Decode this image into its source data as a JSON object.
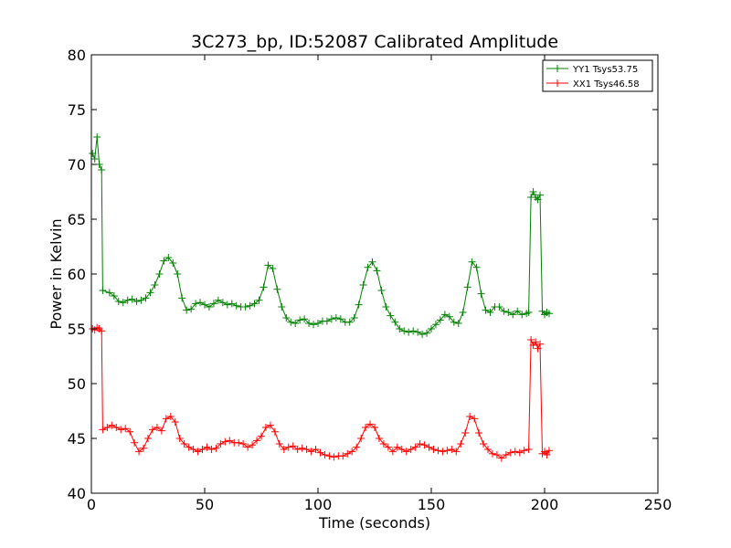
{
  "chart_data": {
    "type": "line",
    "title": "3C273_bp, ID:52087 Calibrated Amplitude",
    "xlabel": "Time (seconds)",
    "ylabel": "Power in Kelvin",
    "xlim": [
      0,
      250
    ],
    "ylim": [
      40,
      80
    ],
    "xticks": [
      0,
      50,
      100,
      150,
      200,
      250
    ],
    "yticks": [
      40,
      45,
      50,
      55,
      60,
      65,
      70,
      75,
      80
    ],
    "grid": false,
    "legend_position": "top-right",
    "marker": "+",
    "series": [
      {
        "name": "YY1 Tsys53.75",
        "color": "#008000",
        "points": [
          [
            0.5,
            71.0
          ],
          [
            1.5,
            70.5
          ],
          [
            2.5,
            72.5
          ],
          [
            3.5,
            70.0
          ],
          [
            4.5,
            69.5
          ],
          [
            5.0,
            58.5
          ],
          [
            8,
            58.3
          ],
          [
            10,
            58.0
          ],
          [
            12,
            57.5
          ],
          [
            14,
            57.4
          ],
          [
            16,
            57.6
          ],
          [
            18,
            57.7
          ],
          [
            20,
            57.5
          ],
          [
            22,
            57.6
          ],
          [
            24,
            57.8
          ],
          [
            26,
            58.3
          ],
          [
            28,
            59.0
          ],
          [
            30,
            60.0
          ],
          [
            32,
            61.2
          ],
          [
            34,
            61.5
          ],
          [
            36,
            61.0
          ],
          [
            38,
            60.0
          ],
          [
            40,
            57.8
          ],
          [
            42,
            56.7
          ],
          [
            44,
            56.8
          ],
          [
            46,
            57.3
          ],
          [
            48,
            57.4
          ],
          [
            50,
            57.2
          ],
          [
            52,
            57.0
          ],
          [
            54,
            57.3
          ],
          [
            56,
            57.6
          ],
          [
            58,
            57.4
          ],
          [
            60,
            57.2
          ],
          [
            62,
            57.3
          ],
          [
            64,
            57.1
          ],
          [
            66,
            57.0
          ],
          [
            68,
            57.0
          ],
          [
            70,
            57.1
          ],
          [
            72,
            57.3
          ],
          [
            74,
            57.6
          ],
          [
            76,
            58.8
          ],
          [
            78,
            60.8
          ],
          [
            80,
            60.5
          ],
          [
            82,
            58.6
          ],
          [
            84,
            57.0
          ],
          [
            86,
            56.0
          ],
          [
            88,
            55.6
          ],
          [
            90,
            55.5
          ],
          [
            92,
            55.8
          ],
          [
            94,
            55.9
          ],
          [
            96,
            55.5
          ],
          [
            98,
            55.4
          ],
          [
            100,
            55.5
          ],
          [
            102,
            55.7
          ],
          [
            104,
            55.7
          ],
          [
            106,
            55.9
          ],
          [
            108,
            56.0
          ],
          [
            110,
            55.9
          ],
          [
            112,
            55.6
          ],
          [
            114,
            55.6
          ],
          [
            116,
            56.0
          ],
          [
            118,
            57.2
          ],
          [
            120,
            59.0
          ],
          [
            122,
            60.6
          ],
          [
            124,
            61.1
          ],
          [
            126,
            60.3
          ],
          [
            128,
            58.5
          ],
          [
            130,
            57.0
          ],
          [
            132,
            56.2
          ],
          [
            134,
            55.6
          ],
          [
            136,
            55.0
          ],
          [
            138,
            54.8
          ],
          [
            140,
            54.7
          ],
          [
            142,
            54.8
          ],
          [
            144,
            54.7
          ],
          [
            146,
            54.5
          ],
          [
            148,
            54.6
          ],
          [
            150,
            55.0
          ],
          [
            152,
            55.4
          ],
          [
            154,
            55.8
          ],
          [
            156,
            56.3
          ],
          [
            158,
            56.1
          ],
          [
            160,
            55.6
          ],
          [
            162,
            55.5
          ],
          [
            164,
            56.5
          ],
          [
            166,
            58.8
          ],
          [
            168,
            61.1
          ],
          [
            170,
            60.6
          ],
          [
            172,
            58.2
          ],
          [
            174,
            56.7
          ],
          [
            176,
            56.5
          ],
          [
            178,
            57.0
          ],
          [
            180,
            57.0
          ],
          [
            182,
            56.6
          ],
          [
            184,
            56.5
          ],
          [
            186,
            56.3
          ],
          [
            188,
            56.6
          ],
          [
            190,
            56.3
          ],
          [
            192,
            56.4
          ],
          [
            193,
            56.5
          ],
          [
            194,
            67.0
          ],
          [
            195,
            67.5
          ],
          [
            196,
            67.0
          ],
          [
            197,
            66.8
          ],
          [
            198,
            67.2
          ],
          [
            199,
            56.6
          ],
          [
            200,
            56.3
          ],
          [
            201,
            56.5
          ],
          [
            202,
            56.4
          ]
        ]
      },
      {
        "name": "XX1 Tsys46.58",
        "color": "#ff0000",
        "points": [
          [
            0.5,
            55.0
          ],
          [
            1.5,
            54.9
          ],
          [
            2.5,
            55.1
          ],
          [
            3.5,
            55.0
          ],
          [
            4.5,
            54.8
          ],
          [
            5.0,
            45.8
          ],
          [
            7,
            46.0
          ],
          [
            9,
            46.2
          ],
          [
            11,
            46.0
          ],
          [
            13,
            45.8
          ],
          [
            15,
            45.9
          ],
          [
            17,
            45.6
          ],
          [
            19,
            44.6
          ],
          [
            21,
            43.8
          ],
          [
            23,
            44.1
          ],
          [
            25,
            45.0
          ],
          [
            27,
            45.8
          ],
          [
            29,
            46.0
          ],
          [
            31,
            45.7
          ],
          [
            33,
            46.8
          ],
          [
            35,
            47.0
          ],
          [
            37,
            46.5
          ],
          [
            39,
            45.0
          ],
          [
            41,
            44.5
          ],
          [
            43,
            44.2
          ],
          [
            45,
            44.0
          ],
          [
            47,
            43.8
          ],
          [
            49,
            44.0
          ],
          [
            51,
            44.2
          ],
          [
            53,
            44.0
          ],
          [
            55,
            44.1
          ],
          [
            57,
            44.5
          ],
          [
            59,
            44.7
          ],
          [
            61,
            44.8
          ],
          [
            63,
            44.6
          ],
          [
            65,
            44.6
          ],
          [
            67,
            44.5
          ],
          [
            69,
            44.2
          ],
          [
            71,
            44.4
          ],
          [
            73,
            44.8
          ],
          [
            75,
            45.2
          ],
          [
            77,
            46.0
          ],
          [
            79,
            46.2
          ],
          [
            81,
            45.6
          ],
          [
            83,
            44.5
          ],
          [
            85,
            44.0
          ],
          [
            87,
            44.2
          ],
          [
            89,
            44.3
          ],
          [
            91,
            44.0
          ],
          [
            93,
            44.1
          ],
          [
            95,
            44.0
          ],
          [
            97,
            43.8
          ],
          [
            99,
            44.0
          ],
          [
            101,
            43.7
          ],
          [
            103,
            43.5
          ],
          [
            105,
            43.4
          ],
          [
            107,
            43.3
          ],
          [
            109,
            43.4
          ],
          [
            111,
            43.4
          ],
          [
            113,
            43.6
          ],
          [
            115,
            43.8
          ],
          [
            117,
            44.2
          ],
          [
            119,
            45.0
          ],
          [
            121,
            46.0
          ],
          [
            123,
            46.3
          ],
          [
            125,
            46.0
          ],
          [
            127,
            45.0
          ],
          [
            129,
            44.5
          ],
          [
            131,
            44.2
          ],
          [
            133,
            43.8
          ],
          [
            135,
            44.2
          ],
          [
            137,
            44.0
          ],
          [
            139,
            43.8
          ],
          [
            141,
            44.0
          ],
          [
            143,
            44.2
          ],
          [
            145,
            44.5
          ],
          [
            147,
            44.4
          ],
          [
            149,
            44.2
          ],
          [
            151,
            44.0
          ],
          [
            153,
            43.9
          ],
          [
            155,
            43.8
          ],
          [
            157,
            43.9
          ],
          [
            159,
            44.0
          ],
          [
            161,
            43.8
          ],
          [
            163,
            44.5
          ],
          [
            165,
            45.5
          ],
          [
            167,
            47.0
          ],
          [
            169,
            46.8
          ],
          [
            171,
            45.5
          ],
          [
            173,
            44.5
          ],
          [
            175,
            44.0
          ],
          [
            177,
            43.6
          ],
          [
            179,
            43.5
          ],
          [
            181,
            43.2
          ],
          [
            183,
            43.5
          ],
          [
            185,
            43.7
          ],
          [
            187,
            43.8
          ],
          [
            189,
            43.7
          ],
          [
            191,
            43.9
          ],
          [
            193,
            44.0
          ],
          [
            194,
            54.0
          ],
          [
            195,
            53.5
          ],
          [
            196,
            53.8
          ],
          [
            197,
            53.2
          ],
          [
            198,
            53.6
          ],
          [
            199,
            43.6
          ],
          [
            200,
            43.8
          ],
          [
            201,
            43.5
          ],
          [
            202,
            43.9
          ]
        ]
      }
    ]
  }
}
